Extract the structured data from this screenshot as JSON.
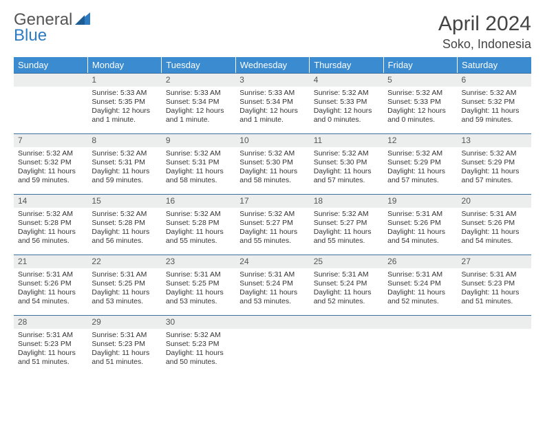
{
  "brand": {
    "name_part1": "General",
    "name_part2": "Blue"
  },
  "title": "April 2024",
  "location": "Soko, Indonesia",
  "colors": {
    "header_bg": "#3a8bd0",
    "daynum_bg": "#eceded",
    "border": "#3a6fa0",
    "brand_blue": "#2d7bc0"
  },
  "weekdays": [
    "Sunday",
    "Monday",
    "Tuesday",
    "Wednesday",
    "Thursday",
    "Friday",
    "Saturday"
  ],
  "weeks": [
    [
      {
        "n": "",
        "sr": "",
        "ss": "",
        "dl": ""
      },
      {
        "n": "1",
        "sr": "Sunrise: 5:33 AM",
        "ss": "Sunset: 5:35 PM",
        "dl": "Daylight: 12 hours and 1 minute."
      },
      {
        "n": "2",
        "sr": "Sunrise: 5:33 AM",
        "ss": "Sunset: 5:34 PM",
        "dl": "Daylight: 12 hours and 1 minute."
      },
      {
        "n": "3",
        "sr": "Sunrise: 5:33 AM",
        "ss": "Sunset: 5:34 PM",
        "dl": "Daylight: 12 hours and 1 minute."
      },
      {
        "n": "4",
        "sr": "Sunrise: 5:32 AM",
        "ss": "Sunset: 5:33 PM",
        "dl": "Daylight: 12 hours and 0 minutes."
      },
      {
        "n": "5",
        "sr": "Sunrise: 5:32 AM",
        "ss": "Sunset: 5:33 PM",
        "dl": "Daylight: 12 hours and 0 minutes."
      },
      {
        "n": "6",
        "sr": "Sunrise: 5:32 AM",
        "ss": "Sunset: 5:32 PM",
        "dl": "Daylight: 11 hours and 59 minutes."
      }
    ],
    [
      {
        "n": "7",
        "sr": "Sunrise: 5:32 AM",
        "ss": "Sunset: 5:32 PM",
        "dl": "Daylight: 11 hours and 59 minutes."
      },
      {
        "n": "8",
        "sr": "Sunrise: 5:32 AM",
        "ss": "Sunset: 5:31 PM",
        "dl": "Daylight: 11 hours and 59 minutes."
      },
      {
        "n": "9",
        "sr": "Sunrise: 5:32 AM",
        "ss": "Sunset: 5:31 PM",
        "dl": "Daylight: 11 hours and 58 minutes."
      },
      {
        "n": "10",
        "sr": "Sunrise: 5:32 AM",
        "ss": "Sunset: 5:30 PM",
        "dl": "Daylight: 11 hours and 58 minutes."
      },
      {
        "n": "11",
        "sr": "Sunrise: 5:32 AM",
        "ss": "Sunset: 5:30 PM",
        "dl": "Daylight: 11 hours and 57 minutes."
      },
      {
        "n": "12",
        "sr": "Sunrise: 5:32 AM",
        "ss": "Sunset: 5:29 PM",
        "dl": "Daylight: 11 hours and 57 minutes."
      },
      {
        "n": "13",
        "sr": "Sunrise: 5:32 AM",
        "ss": "Sunset: 5:29 PM",
        "dl": "Daylight: 11 hours and 57 minutes."
      }
    ],
    [
      {
        "n": "14",
        "sr": "Sunrise: 5:32 AM",
        "ss": "Sunset: 5:28 PM",
        "dl": "Daylight: 11 hours and 56 minutes."
      },
      {
        "n": "15",
        "sr": "Sunrise: 5:32 AM",
        "ss": "Sunset: 5:28 PM",
        "dl": "Daylight: 11 hours and 56 minutes."
      },
      {
        "n": "16",
        "sr": "Sunrise: 5:32 AM",
        "ss": "Sunset: 5:28 PM",
        "dl": "Daylight: 11 hours and 55 minutes."
      },
      {
        "n": "17",
        "sr": "Sunrise: 5:32 AM",
        "ss": "Sunset: 5:27 PM",
        "dl": "Daylight: 11 hours and 55 minutes."
      },
      {
        "n": "18",
        "sr": "Sunrise: 5:32 AM",
        "ss": "Sunset: 5:27 PM",
        "dl": "Daylight: 11 hours and 55 minutes."
      },
      {
        "n": "19",
        "sr": "Sunrise: 5:31 AM",
        "ss": "Sunset: 5:26 PM",
        "dl": "Daylight: 11 hours and 54 minutes."
      },
      {
        "n": "20",
        "sr": "Sunrise: 5:31 AM",
        "ss": "Sunset: 5:26 PM",
        "dl": "Daylight: 11 hours and 54 minutes."
      }
    ],
    [
      {
        "n": "21",
        "sr": "Sunrise: 5:31 AM",
        "ss": "Sunset: 5:26 PM",
        "dl": "Daylight: 11 hours and 54 minutes."
      },
      {
        "n": "22",
        "sr": "Sunrise: 5:31 AM",
        "ss": "Sunset: 5:25 PM",
        "dl": "Daylight: 11 hours and 53 minutes."
      },
      {
        "n": "23",
        "sr": "Sunrise: 5:31 AM",
        "ss": "Sunset: 5:25 PM",
        "dl": "Daylight: 11 hours and 53 minutes."
      },
      {
        "n": "24",
        "sr": "Sunrise: 5:31 AM",
        "ss": "Sunset: 5:24 PM",
        "dl": "Daylight: 11 hours and 53 minutes."
      },
      {
        "n": "25",
        "sr": "Sunrise: 5:31 AM",
        "ss": "Sunset: 5:24 PM",
        "dl": "Daylight: 11 hours and 52 minutes."
      },
      {
        "n": "26",
        "sr": "Sunrise: 5:31 AM",
        "ss": "Sunset: 5:24 PM",
        "dl": "Daylight: 11 hours and 52 minutes."
      },
      {
        "n": "27",
        "sr": "Sunrise: 5:31 AM",
        "ss": "Sunset: 5:23 PM",
        "dl": "Daylight: 11 hours and 51 minutes."
      }
    ],
    [
      {
        "n": "28",
        "sr": "Sunrise: 5:31 AM",
        "ss": "Sunset: 5:23 PM",
        "dl": "Daylight: 11 hours and 51 minutes."
      },
      {
        "n": "29",
        "sr": "Sunrise: 5:31 AM",
        "ss": "Sunset: 5:23 PM",
        "dl": "Daylight: 11 hours and 51 minutes."
      },
      {
        "n": "30",
        "sr": "Sunrise: 5:32 AM",
        "ss": "Sunset: 5:23 PM",
        "dl": "Daylight: 11 hours and 50 minutes."
      },
      {
        "n": "",
        "sr": "",
        "ss": "",
        "dl": ""
      },
      {
        "n": "",
        "sr": "",
        "ss": "",
        "dl": ""
      },
      {
        "n": "",
        "sr": "",
        "ss": "",
        "dl": ""
      },
      {
        "n": "",
        "sr": "",
        "ss": "",
        "dl": ""
      }
    ]
  ]
}
